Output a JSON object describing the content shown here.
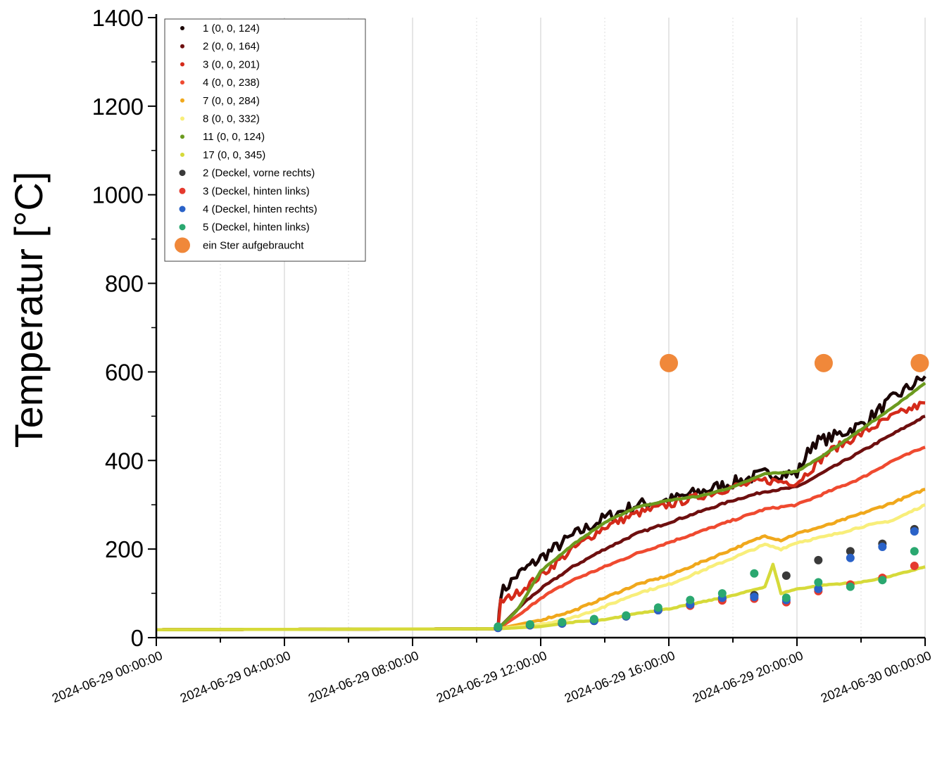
{
  "chart_data": {
    "type": "line",
    "title": "",
    "xlabel": "",
    "ylabel": "Temperatur [°C]",
    "ylim": [
      0,
      1400
    ],
    "xlim": [
      "2024-06-29 00:00:00",
      "2024-06-30 00:00:00"
    ],
    "yticks": [
      "0",
      "200",
      "400",
      "600",
      "800",
      "1000",
      "1200",
      "1400"
    ],
    "xticks": [
      "2024-06-29 00:00:00",
      "2024-06-29 04:00:00",
      "2024-06-29 08:00:00",
      "2024-06-29 12:00:00",
      "2024-06-29 16:00:00",
      "2024-06-29 20:00:00",
      "2024-06-30 00:00:00"
    ],
    "grid": "vertical",
    "legend_position": "top-left",
    "series": [
      {
        "name": "1 (0, 0, 124)",
        "kind": "line",
        "color": "#1a0505",
        "noise": 14,
        "x": [
          "2024-06-29 00:00:00",
          "2024-06-29 10:40:00",
          "2024-06-29 10:45:00",
          "2024-06-29 11:15:00",
          "2024-06-29 12:00:00",
          "2024-06-29 13:00:00",
          "2024-06-29 14:00:00",
          "2024-06-29 15:00:00",
          "2024-06-29 16:00:00",
          "2024-06-29 17:00:00",
          "2024-06-29 18:00:00",
          "2024-06-29 19:00:00",
          "2024-06-29 20:00:00",
          "2024-06-29 20:30:00",
          "2024-06-29 21:00:00",
          "2024-06-29 22:00:00",
          "2024-06-29 23:00:00",
          "2024-06-30 00:00:00"
        ],
        "y": [
          18,
          20,
          100,
          140,
          180,
          230,
          270,
          300,
          310,
          330,
          350,
          370,
          370,
          440,
          450,
          480,
          540,
          590
        ]
      },
      {
        "name": "2 (0, 0, 164)",
        "kind": "line",
        "color": "#6e0f0f",
        "noise": 2,
        "x": [
          "2024-06-29 00:00:00",
          "2024-06-29 10:40:00",
          "2024-06-29 11:30:00",
          "2024-06-29 12:00:00",
          "2024-06-29 13:00:00",
          "2024-06-29 14:00:00",
          "2024-06-29 15:00:00",
          "2024-06-29 16:00:00",
          "2024-06-29 17:00:00",
          "2024-06-29 18:00:00",
          "2024-06-29 19:00:00",
          "2024-06-29 20:00:00",
          "2024-06-29 21:00:00",
          "2024-06-29 22:00:00",
          "2024-06-29 23:00:00",
          "2024-06-30 00:00:00"
        ],
        "y": [
          18,
          20,
          80,
          110,
          160,
          200,
          235,
          260,
          285,
          310,
          330,
          340,
          380,
          420,
          460,
          500
        ]
      },
      {
        "name": "3 (0, 0, 201)",
        "kind": "line",
        "color": "#d42a1a",
        "noise": 9,
        "x": [
          "2024-06-29 00:00:00",
          "2024-06-29 10:40:00",
          "2024-06-29 10:45:00",
          "2024-06-29 11:15:00",
          "2024-06-29 12:00:00",
          "2024-06-29 13:00:00",
          "2024-06-29 14:00:00",
          "2024-06-29 15:00:00",
          "2024-06-29 16:00:00",
          "2024-06-29 17:00:00",
          "2024-06-29 18:00:00",
          "2024-06-29 19:00:00",
          "2024-06-29 20:00:00",
          "2024-06-29 21:00:00",
          "2024-06-29 22:00:00",
          "2024-06-29 23:00:00",
          "2024-06-30 00:00:00"
        ],
        "y": [
          18,
          20,
          80,
          100,
          140,
          200,
          250,
          280,
          300,
          320,
          340,
          355,
          350,
          420,
          460,
          500,
          530
        ]
      },
      {
        "name": "4 (0, 0, 238)",
        "kind": "line",
        "color": "#ef4a30",
        "noise": 2,
        "x": [
          "2024-06-29 00:00:00",
          "2024-06-29 10:40:00",
          "2024-06-29 11:30:00",
          "2024-06-29 12:00:00",
          "2024-06-29 13:00:00",
          "2024-06-29 14:00:00",
          "2024-06-29 15:00:00",
          "2024-06-29 16:00:00",
          "2024-06-29 17:00:00",
          "2024-06-29 18:00:00",
          "2024-06-29 19:00:00",
          "2024-06-29 20:00:00",
          "2024-06-29 21:00:00",
          "2024-06-29 22:00:00",
          "2024-06-29 23:00:00",
          "2024-06-30 00:00:00"
        ],
        "y": [
          18,
          20,
          60,
          90,
          130,
          160,
          190,
          215,
          240,
          265,
          290,
          300,
          330,
          360,
          400,
          430
        ]
      },
      {
        "name": "7 (0, 0, 284)",
        "kind": "line",
        "color": "#f0a81c",
        "noise": 2,
        "x": [
          "2024-06-29 00:00:00",
          "2024-06-29 10:40:00",
          "2024-06-29 12:00:00",
          "2024-06-29 13:00:00",
          "2024-06-29 14:00:00",
          "2024-06-29 15:00:00",
          "2024-06-29 16:00:00",
          "2024-06-29 17:00:00",
          "2024-06-29 18:00:00",
          "2024-06-29 19:00:00",
          "2024-06-29 19:30:00",
          "2024-06-29 20:00:00",
          "2024-06-29 21:00:00",
          "2024-06-29 22:00:00",
          "2024-06-29 23:00:00",
          "2024-06-30 00:00:00"
        ],
        "y": [
          18,
          20,
          40,
          60,
          90,
          120,
          140,
          170,
          200,
          230,
          220,
          235,
          255,
          280,
          305,
          335
        ]
      },
      {
        "name": "8 (0, 0, 332)",
        "kind": "line",
        "color": "#f8ee7a",
        "noise": 2,
        "x": [
          "2024-06-29 00:00:00",
          "2024-06-29 10:40:00",
          "2024-06-29 12:00:00",
          "2024-06-29 13:00:00",
          "2024-06-29 14:00:00",
          "2024-06-29 15:00:00",
          "2024-06-29 16:00:00",
          "2024-06-29 17:00:00",
          "2024-06-29 18:00:00",
          "2024-06-29 19:00:00",
          "2024-06-29 19:30:00",
          "2024-06-29 20:00:00",
          "2024-06-29 21:00:00",
          "2024-06-29 22:00:00",
          "2024-06-29 23:00:00",
          "2024-06-30 00:00:00"
        ],
        "y": [
          18,
          20,
          30,
          45,
          70,
          100,
          120,
          150,
          180,
          210,
          200,
          215,
          230,
          250,
          265,
          300
        ]
      },
      {
        "name": "11 (0, 0, 124)",
        "kind": "line",
        "color": "#6b9a1e",
        "noise": 1,
        "x": [
          "2024-06-29 00:00:00",
          "2024-06-29 10:40:00",
          "2024-06-29 11:15:00",
          "2024-06-29 12:00:00",
          "2024-06-29 13:00:00",
          "2024-06-29 14:00:00",
          "2024-06-29 15:00:00",
          "2024-06-29 16:00:00",
          "2024-06-29 17:00:00",
          "2024-06-29 18:00:00",
          "2024-06-29 19:00:00",
          "2024-06-29 20:00:00",
          "2024-06-29 21:00:00",
          "2024-06-29 22:00:00",
          "2024-06-29 23:00:00",
          "2024-06-30 00:00:00"
        ],
        "y": [
          18,
          20,
          60,
          150,
          210,
          260,
          295,
          310,
          320,
          340,
          370,
          375,
          420,
          470,
          520,
          575
        ]
      },
      {
        "name": "17 (0, 0, 345)",
        "kind": "line",
        "color": "#d6da3a",
        "noise": 1,
        "x": [
          "2024-06-29 00:00:00",
          "2024-06-29 10:40:00",
          "2024-06-29 12:00:00",
          "2024-06-29 13:00:00",
          "2024-06-29 14:00:00",
          "2024-06-29 15:00:00",
          "2024-06-29 16:00:00",
          "2024-06-29 17:00:00",
          "2024-06-29 18:00:00",
          "2024-06-29 19:00:00",
          "2024-06-29 19:15:00",
          "2024-06-29 19:30:00",
          "2024-06-29 20:00:00",
          "2024-06-29 21:00:00",
          "2024-06-29 22:00:00",
          "2024-06-29 23:00:00",
          "2024-06-30 00:00:00"
        ],
        "y": [
          18,
          20,
          25,
          35,
          40,
          55,
          65,
          80,
          95,
          115,
          165,
          100,
          110,
          120,
          125,
          140,
          160
        ]
      },
      {
        "name": "2 (Deckel, vorne rechts)",
        "kind": "dots",
        "color": "#3a3a3a",
        "r": 6,
        "x": [
          "2024-06-29 10:40:00",
          "2024-06-29 11:40:00",
          "2024-06-29 12:40:00",
          "2024-06-29 13:40:00",
          "2024-06-29 14:40:00",
          "2024-06-29 15:40:00",
          "2024-06-29 16:40:00",
          "2024-06-29 17:40:00",
          "2024-06-29 18:40:00",
          "2024-06-29 19:40:00",
          "2024-06-29 20:40:00",
          "2024-06-29 21:40:00",
          "2024-06-29 22:40:00",
          "2024-06-29 23:40:00"
        ],
        "y": [
          22,
          28,
          32,
          38,
          48,
          62,
          75,
          88,
          96,
          140,
          175,
          195,
          212,
          245
        ]
      },
      {
        "name": "3 (Deckel, hinten links)",
        "kind": "dots",
        "color": "#e53a2e",
        "r": 6,
        "x": [
          "2024-06-29 10:40:00",
          "2024-06-29 11:40:00",
          "2024-06-29 12:40:00",
          "2024-06-29 13:40:00",
          "2024-06-29 14:40:00",
          "2024-06-29 15:40:00",
          "2024-06-29 16:40:00",
          "2024-06-29 17:40:00",
          "2024-06-29 18:40:00",
          "2024-06-29 19:40:00",
          "2024-06-29 20:40:00",
          "2024-06-29 21:40:00",
          "2024-06-29 22:40:00",
          "2024-06-29 23:40:00"
        ],
        "y": [
          22,
          28,
          32,
          38,
          48,
          62,
          72,
          84,
          88,
          80,
          105,
          120,
          135,
          162
        ]
      },
      {
        "name": "4 (Deckel, hinten rechts)",
        "kind": "dots",
        "color": "#2a62c8",
        "r": 6,
        "x": [
          "2024-06-29 10:40:00",
          "2024-06-29 11:40:00",
          "2024-06-29 12:40:00",
          "2024-06-29 13:40:00",
          "2024-06-29 14:40:00",
          "2024-06-29 15:40:00",
          "2024-06-29 16:40:00",
          "2024-06-29 17:40:00",
          "2024-06-29 18:40:00",
          "2024-06-29 19:40:00",
          "2024-06-29 20:40:00",
          "2024-06-29 21:40:00",
          "2024-06-29 22:40:00",
          "2024-06-29 23:40:00"
        ],
        "y": [
          22,
          28,
          32,
          38,
          48,
          62,
          75,
          90,
          92,
          85,
          110,
          180,
          205,
          240
        ]
      },
      {
        "name": "5 (Deckel, hinten links)",
        "kind": "dots",
        "color": "#2aa870",
        "r": 6,
        "x": [
          "2024-06-29 10:40:00",
          "2024-06-29 11:40:00",
          "2024-06-29 12:40:00",
          "2024-06-29 13:40:00",
          "2024-06-29 14:40:00",
          "2024-06-29 15:40:00",
          "2024-06-29 16:40:00",
          "2024-06-29 17:40:00",
          "2024-06-29 18:40:00",
          "2024-06-29 19:40:00",
          "2024-06-29 20:40:00",
          "2024-06-29 21:40:00",
          "2024-06-29 22:40:00",
          "2024-06-29 23:40:00"
        ],
        "y": [
          25,
          30,
          35,
          42,
          50,
          68,
          85,
          100,
          145,
          90,
          125,
          115,
          130,
          195
        ]
      },
      {
        "name": "ein Ster aufgebraucht",
        "kind": "dots",
        "color": "#f0883a",
        "r": 13,
        "x": [
          "2024-06-29 16:00:00",
          "2024-06-29 20:50:00",
          "2024-06-29 23:50:00"
        ],
        "y": [
          620,
          620,
          620
        ]
      }
    ]
  }
}
